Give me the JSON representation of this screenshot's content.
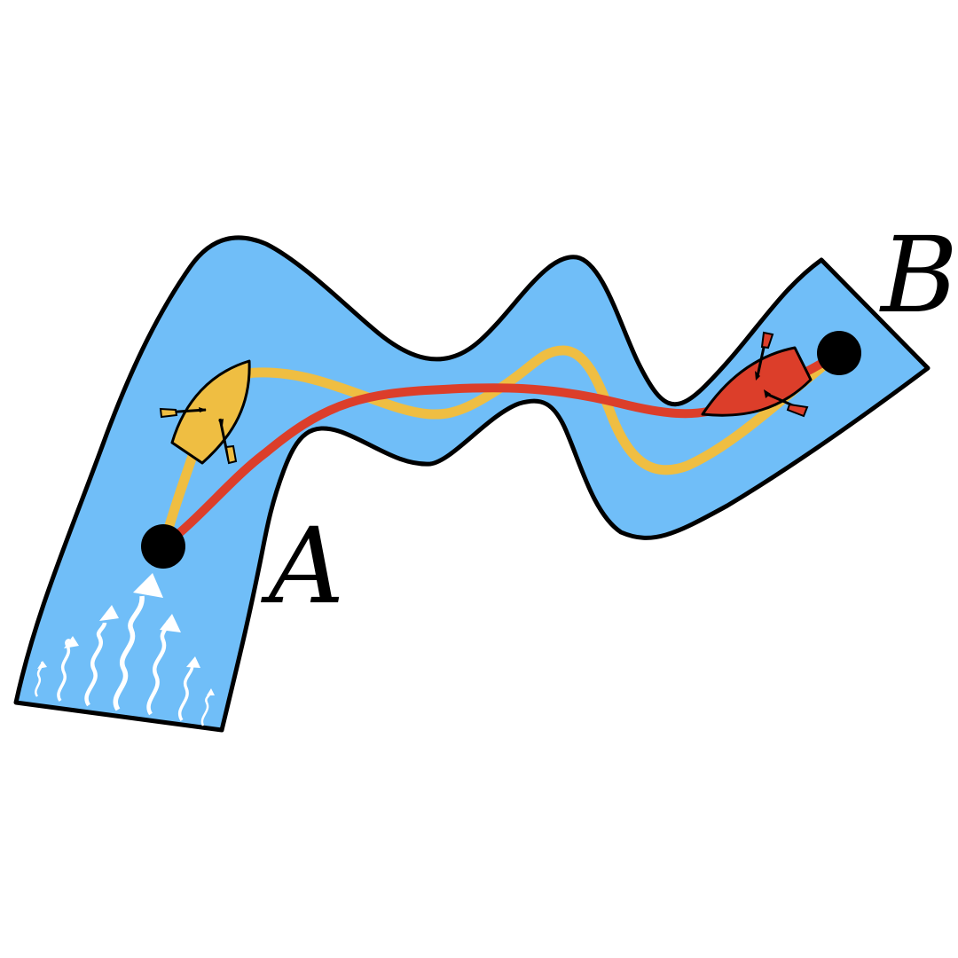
{
  "points": {
    "start_label": "A",
    "end_label": "B"
  },
  "colors": {
    "river_fill": "#70BEF8",
    "outline": "#000000",
    "yellow_route": "#EFBE42",
    "red_route": "#DC3E2A",
    "current_arrows": "#FFFFFF",
    "endpoint": "#000000"
  },
  "icons": {
    "yellow_boat": "rowboat-icon",
    "red_boat": "rowboat-icon",
    "current": "wavy-up-arrow-icon"
  }
}
